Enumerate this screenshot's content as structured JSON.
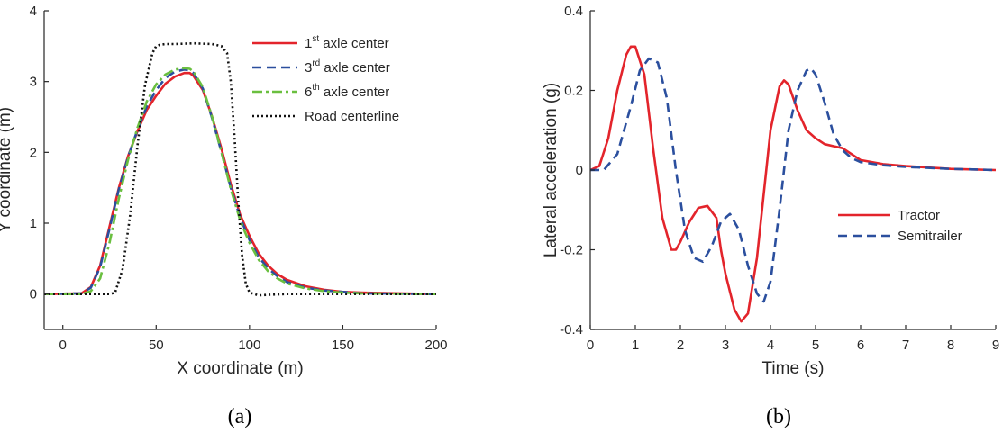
{
  "colors": {
    "red": "#e3242b",
    "blue": "#2b4f9e",
    "green": "#6abf3f",
    "black": "#111111",
    "axis": "#262626"
  },
  "chart_data": [
    {
      "id": "a",
      "type": "line",
      "panel_label": "(a)",
      "xlabel": "X coordinate (m)",
      "ylabel": "Y coordinate (m)",
      "xlim": [
        -10,
        200
      ],
      "ylim": [
        -0.5,
        4
      ],
      "xticks": [
        0,
        50,
        100,
        150,
        200
      ],
      "yticks": [
        0,
        1,
        2,
        3,
        4
      ],
      "legend_position": "top-right",
      "series": [
        {
          "name": "1st axle center",
          "legend_base": "1",
          "legend_sup": "st",
          "legend_rest": " axle center",
          "color": "#e3242b",
          "style": "solid",
          "x": [
            -10,
            10,
            15,
            20,
            25,
            30,
            35,
            40,
            45,
            50,
            55,
            60,
            65,
            68,
            70,
            75,
            80,
            85,
            90,
            95,
            100,
            105,
            110,
            115,
            120,
            130,
            140,
            150,
            160,
            180,
            200
          ],
          "y": [
            0,
            0.01,
            0.1,
            0.4,
            0.95,
            1.5,
            1.95,
            2.3,
            2.6,
            2.8,
            2.97,
            3.07,
            3.12,
            3.12,
            3.08,
            2.88,
            2.5,
            2.05,
            1.55,
            1.12,
            0.82,
            0.57,
            0.4,
            0.28,
            0.2,
            0.11,
            0.06,
            0.03,
            0.02,
            0.01,
            0
          ]
        },
        {
          "name": "3rd axle center",
          "legend_base": "3",
          "legend_sup": "rd",
          "legend_rest": " axle center",
          "color": "#2b4f9e",
          "style": "dashed",
          "x": [
            -10,
            10,
            15,
            20,
            25,
            30,
            35,
            40,
            45,
            50,
            55,
            60,
            65,
            68,
            70,
            75,
            80,
            85,
            90,
            95,
            100,
            105,
            110,
            115,
            120,
            130,
            140,
            150,
            160,
            180,
            200
          ],
          "y": [
            0,
            0.01,
            0.09,
            0.38,
            0.92,
            1.48,
            1.94,
            2.32,
            2.65,
            2.88,
            3.05,
            3.14,
            3.17,
            3.16,
            3.12,
            2.9,
            2.48,
            2.0,
            1.5,
            1.08,
            0.76,
            0.52,
            0.36,
            0.25,
            0.17,
            0.09,
            0.05,
            0.03,
            0.01,
            0.005,
            0
          ]
        },
        {
          "name": "6th axle center",
          "legend_base": "6",
          "legend_sup": "th",
          "legend_rest": " axle center",
          "color": "#6abf3f",
          "style": "dashdot",
          "x": [
            -10,
            10,
            15,
            20,
            25,
            30,
            35,
            40,
            45,
            50,
            55,
            60,
            65,
            68,
            70,
            75,
            80,
            85,
            90,
            95,
            100,
            105,
            110,
            115,
            120,
            130,
            140,
            150,
            160,
            180,
            200
          ],
          "y": [
            0,
            0.0,
            0.04,
            0.22,
            0.72,
            1.35,
            1.9,
            2.35,
            2.72,
            2.96,
            3.1,
            3.17,
            3.19,
            3.18,
            3.14,
            2.92,
            2.5,
            2.0,
            1.48,
            1.04,
            0.72,
            0.48,
            0.32,
            0.22,
            0.15,
            0.08,
            0.04,
            0.02,
            0.01,
            0.005,
            0
          ]
        },
        {
          "name": "Road centerline",
          "legend_base": "Road centerline",
          "legend_sup": "",
          "legend_rest": "",
          "color": "#111111",
          "style": "dotted",
          "x": [
            -10,
            25,
            28,
            32,
            36,
            40,
            44,
            48,
            50,
            52,
            55,
            60,
            70,
            80,
            85,
            88,
            90,
            92,
            94,
            96,
            98,
            100,
            105,
            110,
            120,
            200
          ],
          "y": [
            0,
            0,
            0.02,
            0.35,
            1.1,
            2.1,
            2.95,
            3.4,
            3.5,
            3.52,
            3.53,
            3.53,
            3.54,
            3.53,
            3.5,
            3.4,
            3.0,
            2.2,
            1.3,
            0.55,
            0.15,
            0.02,
            -0.02,
            -0.01,
            0,
            0
          ]
        }
      ]
    },
    {
      "id": "b",
      "type": "line",
      "panel_label": "(b)",
      "xlabel": "Time (s)",
      "ylabel": "Lateral acceleration (g)",
      "xlim": [
        0,
        9
      ],
      "ylim": [
        -0.4,
        0.4
      ],
      "xticks": [
        0,
        1,
        2,
        3,
        4,
        5,
        6,
        7,
        8,
        9
      ],
      "yticks": [
        -0.4,
        -0.2,
        0,
        0.2,
        0.4
      ],
      "ytick_labels": [
        "-0.4",
        "-0.2",
        "0",
        "0.2",
        "0.4"
      ],
      "legend_position": "center-right",
      "series": [
        {
          "name": "Tractor",
          "legend_base": "Tractor",
          "legend_sup": "",
          "legend_rest": "",
          "color": "#e3242b",
          "style": "solid",
          "x": [
            0,
            0.2,
            0.4,
            0.6,
            0.8,
            0.9,
            1.0,
            1.2,
            1.4,
            1.6,
            1.8,
            1.9,
            2.0,
            2.2,
            2.4,
            2.6,
            2.8,
            2.9,
            3.0,
            3.2,
            3.35,
            3.5,
            3.7,
            4.0,
            4.2,
            4.3,
            4.4,
            4.6,
            4.8,
            5.0,
            5.2,
            5.4,
            5.6,
            5.8,
            6.0,
            6.5,
            7.0,
            8.0,
            9.0
          ],
          "y": [
            0,
            0.01,
            0.08,
            0.2,
            0.29,
            0.31,
            0.31,
            0.24,
            0.05,
            -0.12,
            -0.2,
            -0.2,
            -0.18,
            -0.13,
            -0.095,
            -0.09,
            -0.12,
            -0.2,
            -0.26,
            -0.35,
            -0.38,
            -0.36,
            -0.22,
            0.1,
            0.21,
            0.225,
            0.215,
            0.15,
            0.1,
            0.08,
            0.065,
            0.06,
            0.055,
            0.04,
            0.025,
            0.015,
            0.01,
            0.003,
            0
          ]
        },
        {
          "name": "Semitrailer",
          "legend_base": "Semitrailer",
          "legend_sup": "",
          "legend_rest": "",
          "color": "#2b4f9e",
          "style": "dashed",
          "x": [
            0,
            0.3,
            0.6,
            0.9,
            1.1,
            1.3,
            1.5,
            1.7,
            1.9,
            2.1,
            2.3,
            2.5,
            2.7,
            2.9,
            3.1,
            3.3,
            3.5,
            3.7,
            3.85,
            4.0,
            4.2,
            4.4,
            4.6,
            4.8,
            4.9,
            5.0,
            5.2,
            5.4,
            5.6,
            5.8,
            6.0,
            6.5,
            7.0,
            8.0,
            9.0
          ],
          "y": [
            0,
            0.0,
            0.04,
            0.16,
            0.25,
            0.28,
            0.27,
            0.18,
            0.0,
            -0.15,
            -0.22,
            -0.23,
            -0.19,
            -0.13,
            -0.11,
            -0.15,
            -0.24,
            -0.31,
            -0.33,
            -0.28,
            -0.1,
            0.1,
            0.2,
            0.25,
            0.255,
            0.24,
            0.17,
            0.09,
            0.05,
            0.03,
            0.02,
            0.012,
            0.008,
            0.003,
            0
          ]
        }
      ]
    }
  ]
}
